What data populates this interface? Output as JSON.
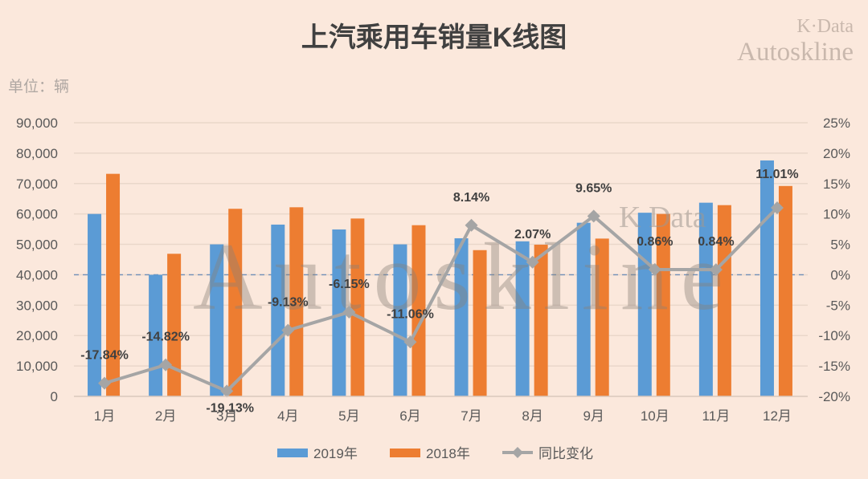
{
  "chart_data": {
    "type": "bar",
    "title": "上汽乘用车销量K线图",
    "unit_label": "单位：辆",
    "categories": [
      "1月",
      "2月",
      "3月",
      "4月",
      "5月",
      "6月",
      "7月",
      "8月",
      "9月",
      "10月",
      "11月",
      "12月"
    ],
    "series": [
      {
        "name": "2019年",
        "type": "bar",
        "axis": "left",
        "color": "#5b9bd5",
        "values": [
          60000,
          40000,
          50000,
          56500,
          54900,
          50000,
          52000,
          51000,
          57100,
          60400,
          63700,
          77600
        ]
      },
      {
        "name": "2018年",
        "type": "bar",
        "axis": "left",
        "color": "#ed7d31",
        "values": [
          73200,
          46900,
          61700,
          62200,
          58500,
          56300,
          48100,
          49900,
          51900,
          60000,
          62900,
          69200
        ]
      },
      {
        "name": "同比变化",
        "type": "line",
        "axis": "right",
        "color": "#a5a5a5",
        "marker": "diamond",
        "values": [
          -17.84,
          -14.82,
          -19.13,
          -9.13,
          -6.15,
          -11.06,
          8.14,
          2.07,
          9.65,
          0.86,
          0.84,
          11.01
        ],
        "labels": [
          "-17.84%",
          "-14.82%",
          "-19.13%",
          "-9.13%",
          "-6.15%",
          "-11.06%",
          "8.14%",
          "2.07%",
          "9.65%",
          "0.86%",
          "0.84%",
          "11.01%"
        ]
      }
    ],
    "y_left": {
      "range": [
        0,
        90000
      ],
      "ticks": [
        "0",
        "10,000",
        "20,000",
        "30,000",
        "40,000",
        "50,000",
        "60,000",
        "70,000",
        "80,000",
        "90,000"
      ]
    },
    "y_right": {
      "range": [
        -20,
        25
      ],
      "ticks": [
        "-20%",
        "-15%",
        "-10%",
        "-5%",
        "0%",
        "5%",
        "10%",
        "15%",
        "20%",
        "25%"
      ],
      "reference_line": 0
    },
    "grid": true,
    "legend": "bottom",
    "watermark": {
      "corner_line1": "K·Data",
      "corner_line2": "Autoskline",
      "center_small": "K Data",
      "center_big": "Autoskline"
    }
  }
}
